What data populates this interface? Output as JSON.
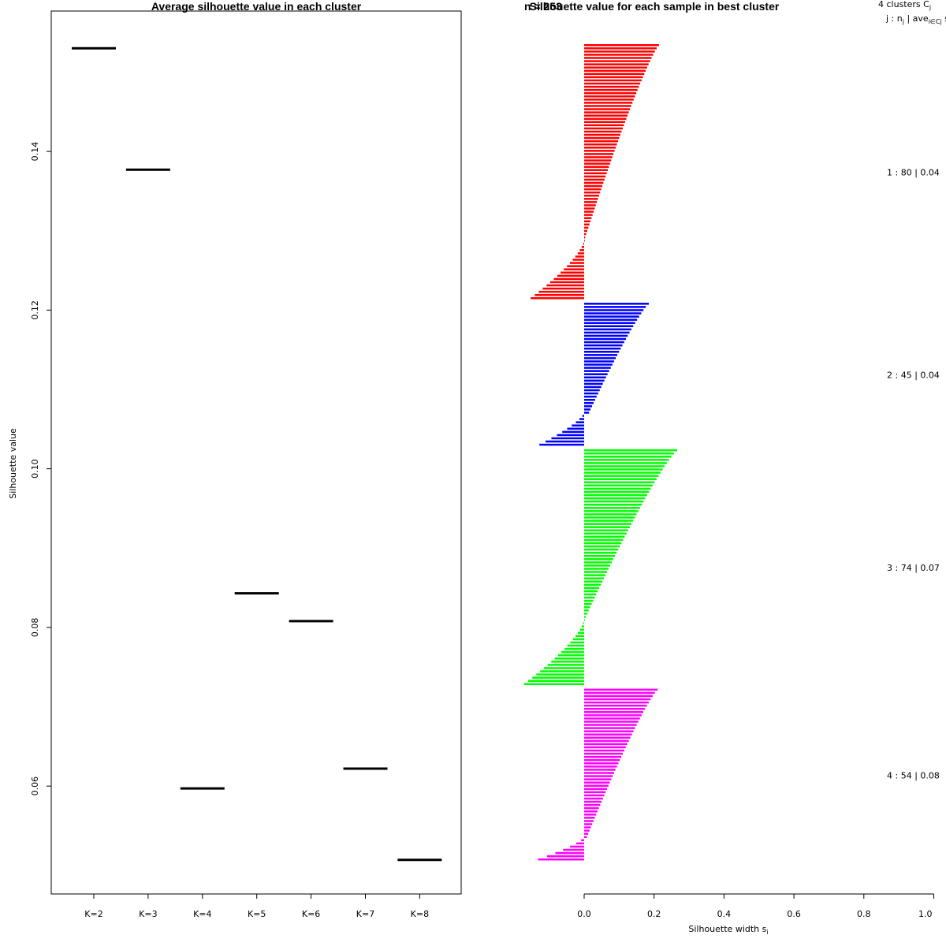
{
  "chart_data": [
    {
      "type": "line",
      "title": "Average silhouette value in each cluster",
      "xlabel": "",
      "ylabel": "Silhouette value",
      "categories": [
        "K=2",
        "K=3",
        "K=4",
        "K=5",
        "K=6",
        "K=7",
        "K=8"
      ],
      "values": [
        0.153,
        0.1377,
        0.0597,
        0.0843,
        0.0808,
        0.0622,
        0.0507
      ],
      "yticks": [
        "0.06",
        "0.08",
        "0.10",
        "0.12",
        "0.14"
      ],
      "ylim": [
        0.0464,
        0.1577
      ]
    },
    {
      "type": "bar",
      "title": "Silhouette value for each sample in best cluster",
      "overlap_text": "n = 253",
      "xlabel": "Silhouette width s",
      "xlabel_sub": "i",
      "xticks": [
        "0.0",
        "0.2",
        "0.4",
        "0.6",
        "0.8",
        "1.0"
      ],
      "xlim": [
        -0.2,
        1.0
      ],
      "legend_header": {
        "line1": "4  clusters  C",
        "line1_sub": "j",
        "line2": "j :  n",
        "line2_sub1": "j",
        "line2_mid": " | ave",
        "line2_sub2": "i∈Cj",
        "line2_end": "  s"
      },
      "series": [
        {
          "name": "1",
          "color": "#ff0000",
          "n": 80,
          "label": "1 :   80  |  0.04",
          "top": 0.214,
          "pos_end": 0.0,
          "pos_count": 62,
          "neg_min": -0.153,
          "neg_count": 18
        },
        {
          "name": "2",
          "color": "#0000ff",
          "n": 45,
          "label": "2 :   45  |  0.04",
          "top": 0.185,
          "pos_end": 0.014,
          "pos_count": 35,
          "neg_min": -0.128,
          "neg_count": 10
        },
        {
          "name": "3",
          "color": "#00ff00",
          "n": 74,
          "label": "3 :   74  |  0.07",
          "top": 0.266,
          "pos_end": 0.0,
          "pos_count": 54,
          "neg_min": -0.172,
          "neg_count": 20
        },
        {
          "name": "4",
          "color": "#ff00ff",
          "n": 54,
          "label": "4 :   54  |  0.08",
          "top": 0.21,
          "pos_end": 0.008,
          "pos_count": 47,
          "neg_min": -0.132,
          "neg_count": 7
        }
      ]
    }
  ]
}
